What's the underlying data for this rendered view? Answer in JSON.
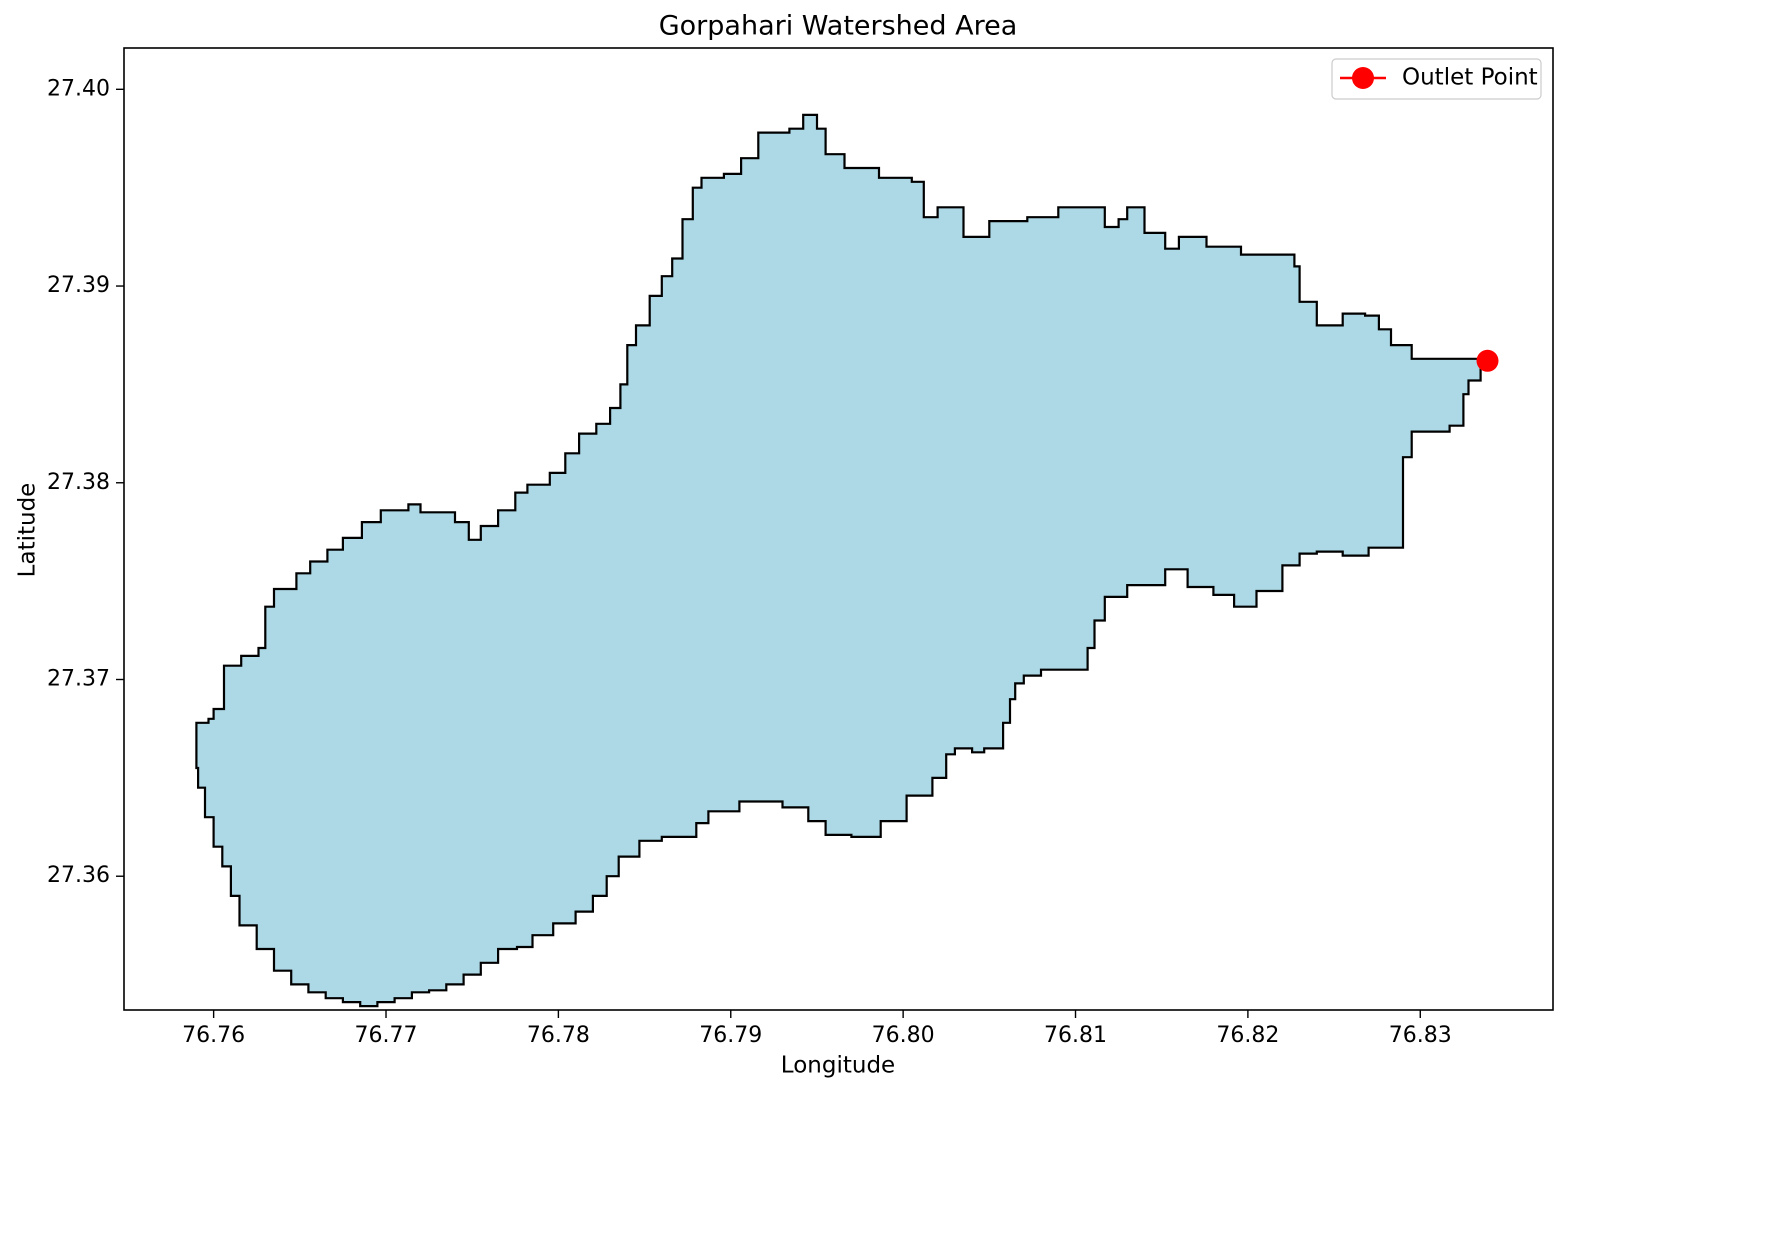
{
  "chart_data": {
    "type": "map",
    "title": "Gorpahari Watershed Area",
    "xlabel": "Longitude",
    "ylabel": "Latitude",
    "xlim": [
      76.7548,
      76.8377
    ],
    "ylim": [
      27.3532,
      27.4021
    ],
    "x_ticks": [
      "76.76",
      "76.77",
      "76.78",
      "76.79",
      "76.80",
      "76.81",
      "76.82",
      "76.83"
    ],
    "y_ticks": [
      "27.36",
      "27.37",
      "27.38",
      "27.39",
      "27.40"
    ],
    "polygon_fill": "#add8e6",
    "polygon_edge": "#000000",
    "watershed_boundary": [
      [
        76.759,
        27.3678
      ],
      [
        76.7597,
        27.368
      ],
      [
        76.76,
        27.3685
      ],
      [
        76.7606,
        27.3685
      ],
      [
        76.7606,
        27.3707
      ],
      [
        76.7616,
        27.3712
      ],
      [
        76.7626,
        27.3716
      ],
      [
        76.763,
        27.3737
      ],
      [
        76.7635,
        27.3746
      ],
      [
        76.7648,
        27.3754
      ],
      [
        76.7656,
        27.376
      ],
      [
        76.7666,
        27.3766
      ],
      [
        76.7675,
        27.3772
      ],
      [
        76.7686,
        27.378
      ],
      [
        76.7697,
        27.3786
      ],
      [
        76.7713,
        27.3789
      ],
      [
        76.772,
        27.3785
      ],
      [
        76.773,
        27.3785
      ],
      [
        76.774,
        27.378
      ],
      [
        76.7748,
        27.3771
      ],
      [
        76.7755,
        27.3778
      ],
      [
        76.7765,
        27.3786
      ],
      [
        76.7775,
        27.3795
      ],
      [
        76.7782,
        27.3799
      ],
      [
        76.7795,
        27.3805
      ],
      [
        76.7804,
        27.3815
      ],
      [
        76.7812,
        27.3825
      ],
      [
        76.7822,
        27.383
      ],
      [
        76.783,
        27.3838
      ],
      [
        76.7836,
        27.385
      ],
      [
        76.784,
        27.387
      ],
      [
        76.7845,
        27.388
      ],
      [
        76.7853,
        27.3895
      ],
      [
        76.786,
        27.3905
      ],
      [
        76.7866,
        27.3914
      ],
      [
        76.7872,
        27.3934
      ],
      [
        76.7878,
        27.395
      ],
      [
        76.7883,
        27.3955
      ],
      [
        76.7896,
        27.3957
      ],
      [
        76.7906,
        27.3965
      ],
      [
        76.7916,
        27.3978
      ],
      [
        76.7934,
        27.398
      ],
      [
        76.7942,
        27.3987
      ],
      [
        76.795,
        27.398
      ],
      [
        76.7955,
        27.3967
      ],
      [
        76.7966,
        27.396
      ],
      [
        76.7986,
        27.3955
      ],
      [
        76.8005,
        27.3953
      ],
      [
        76.8012,
        27.3935
      ],
      [
        76.802,
        27.394
      ],
      [
        76.8035,
        27.3925
      ],
      [
        76.805,
        27.3933
      ],
      [
        76.8072,
        27.3935
      ],
      [
        76.809,
        27.394
      ],
      [
        76.8103,
        27.394
      ],
      [
        76.8117,
        27.393
      ],
      [
        76.8125,
        27.3934
      ],
      [
        76.813,
        27.394
      ],
      [
        76.814,
        27.3927
      ],
      [
        76.8152,
        27.3919
      ],
      [
        76.816,
        27.3925
      ],
      [
        76.8176,
        27.392
      ],
      [
        76.8196,
        27.3916
      ],
      [
        76.8215,
        27.3916
      ],
      [
        76.8227,
        27.391
      ],
      [
        76.823,
        27.3892
      ],
      [
        76.824,
        27.388
      ],
      [
        76.8255,
        27.3886
      ],
      [
        76.8268,
        27.3885
      ],
      [
        76.8276,
        27.3878
      ],
      [
        76.8283,
        27.387
      ],
      [
        76.8295,
        27.3863
      ],
      [
        76.8339,
        27.3862
      ],
      [
        76.8335,
        27.3852
      ],
      [
        76.8328,
        27.3845
      ],
      [
        76.8325,
        27.3829
      ],
      [
        76.8317,
        27.3826
      ],
      [
        76.83,
        27.3826
      ],
      [
        76.8295,
        27.3813
      ],
      [
        76.829,
        27.3797
      ],
      [
        76.829,
        27.3767
      ],
      [
        76.827,
        27.3763
      ],
      [
        76.8255,
        27.3765
      ],
      [
        76.824,
        27.3764
      ],
      [
        76.823,
        27.3758
      ],
      [
        76.822,
        27.3745
      ],
      [
        76.8205,
        27.3737
      ],
      [
        76.8192,
        27.3743
      ],
      [
        76.818,
        27.3747
      ],
      [
        76.8165,
        27.3756
      ],
      [
        76.8152,
        27.3748
      ],
      [
        76.8135,
        27.3748
      ],
      [
        76.813,
        27.3742
      ],
      [
        76.8117,
        27.373
      ],
      [
        76.8111,
        27.3716
      ],
      [
        76.8107,
        27.3705
      ],
      [
        76.809,
        27.3705
      ],
      [
        76.808,
        27.3702
      ],
      [
        76.807,
        27.3698
      ],
      [
        76.8065,
        27.369
      ],
      [
        76.8062,
        27.3678
      ],
      [
        76.8058,
        27.3665
      ],
      [
        76.8047,
        27.3663
      ],
      [
        76.804,
        27.3665
      ],
      [
        76.803,
        27.3662
      ],
      [
        76.8025,
        27.365
      ],
      [
        76.8017,
        27.3641
      ],
      [
        76.8002,
        27.3628
      ],
      [
        76.7987,
        27.362
      ],
      [
        76.797,
        27.3621
      ],
      [
        76.7955,
        27.3628
      ],
      [
        76.7945,
        27.3635
      ],
      [
        76.793,
        27.3638
      ],
      [
        76.7905,
        27.3633
      ],
      [
        76.7887,
        27.3627
      ],
      [
        76.788,
        27.362
      ],
      [
        76.786,
        27.3618
      ],
      [
        76.7847,
        27.361
      ],
      [
        76.7835,
        27.36
      ],
      [
        76.7828,
        27.359
      ],
      [
        76.782,
        27.3582
      ],
      [
        76.781,
        27.3576
      ],
      [
        76.7797,
        27.357
      ],
      [
        76.7785,
        27.3564
      ],
      [
        76.7776,
        27.3563
      ],
      [
        76.7765,
        27.3556
      ],
      [
        76.7755,
        27.355
      ],
      [
        76.7745,
        27.3545
      ],
      [
        76.7735,
        27.3542
      ],
      [
        76.7725,
        27.3541
      ],
      [
        76.7715,
        27.3538
      ],
      [
        76.7705,
        27.3536
      ],
      [
        76.7695,
        27.3534
      ],
      [
        76.7685,
        27.3536
      ],
      [
        76.7675,
        27.3538
      ],
      [
        76.7665,
        27.3541
      ],
      [
        76.7655,
        27.3545
      ],
      [
        76.7645,
        27.3552
      ],
      [
        76.7635,
        27.3563
      ],
      [
        76.7625,
        27.3575
      ],
      [
        76.7615,
        27.359
      ],
      [
        76.761,
        27.3605
      ],
      [
        76.7605,
        27.3615
      ],
      [
        76.76,
        27.363
      ],
      [
        76.7595,
        27.3645
      ],
      [
        76.7591,
        27.3655
      ],
      [
        76.759,
        27.3665
      ]
    ],
    "outlet_point": {
      "lon": 76.8339,
      "lat": 27.3862,
      "color": "#ff0000"
    },
    "legend": {
      "label": "Outlet Point",
      "placement": "upper right"
    },
    "grid": false
  }
}
